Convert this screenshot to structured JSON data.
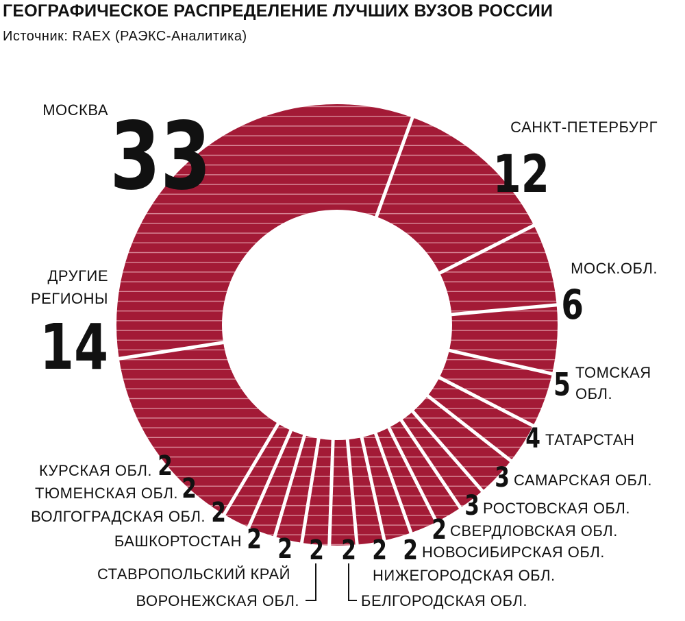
{
  "chart_data": {
    "type": "pie",
    "title": "ГЕОГРАФИЧЕСКОЕ РАСПРЕДЕЛЕНИЕ ЛУЧШИХ ВУЗОВ РОССИИ",
    "subtitle": "Источник: RAEX (РАЭКС-Аналитика)",
    "colors": {
      "slice": "#a31a36",
      "stripe": "#d98a99",
      "gap": "#ffffff",
      "text": "#111111"
    },
    "slices": [
      {
        "label": "САНКТ-ПЕТЕРБУРГ",
        "value": 12
      },
      {
        "label": "МОСК.ОБЛ.",
        "value": 6
      },
      {
        "label": "ТОМСКАЯ ОБЛ.",
        "value": 5
      },
      {
        "label": "ТАТАРСТАН",
        "value": 4
      },
      {
        "label": "САМАРСКАЯ ОБЛ.",
        "value": 3
      },
      {
        "label": "РОСТОВСКАЯ ОБЛ.",
        "value": 3
      },
      {
        "label": "СВЕРДЛОВСКАЯ ОБЛ.",
        "value": 2
      },
      {
        "label": "НОВОСИБИРСКАЯ ОБЛ.",
        "value": 2
      },
      {
        "label": "НИЖЕГОРОДСКАЯ ОБЛ.",
        "value": 2
      },
      {
        "label": "БЕЛГОРОДСКАЯ ОБЛ.",
        "value": 2
      },
      {
        "label": "ВОРОНЕЖСКАЯ ОБЛ.",
        "value": 2
      },
      {
        "label": "СТАВРОПОЛЬСКИЙ КРАЙ",
        "value": 2
      },
      {
        "label": "БАШКОРТОСТАН",
        "value": 2
      },
      {
        "label": "ВОЛГОГРАДСКАЯ ОБЛ.",
        "value": 2
      },
      {
        "label": "ТЮМЕНСКАЯ ОБЛ.",
        "value": 2
      },
      {
        "label": "КУРСКАЯ ОБЛ.",
        "value": 2
      },
      {
        "label": "ДРУГИЕ РЕГИОНЫ",
        "value": 14
      },
      {
        "label": "МОСКВА",
        "value": 33
      }
    ]
  }
}
